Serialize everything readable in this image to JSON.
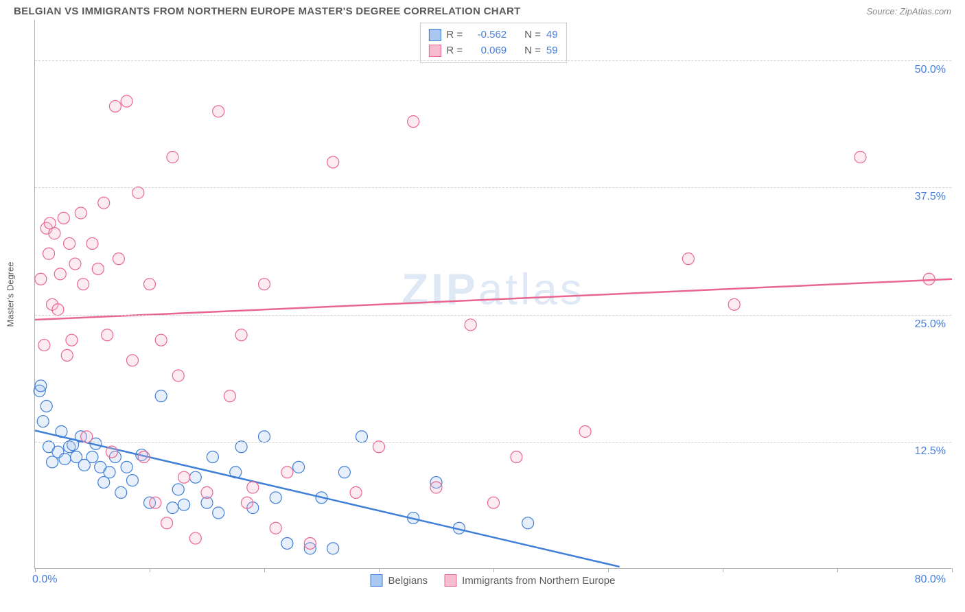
{
  "title": "BELGIAN VS IMMIGRANTS FROM NORTHERN EUROPE MASTER'S DEGREE CORRELATION CHART",
  "source": "Source: ZipAtlas.com",
  "watermark": {
    "left": "ZIP",
    "right": "atlas"
  },
  "chart": {
    "type": "scatter",
    "ylabel": "Master's Degree",
    "background_color": "#ffffff",
    "grid_color": "#d0d0d0",
    "axis_color": "#b0b0b0",
    "tick_label_color": "#4a7fd8",
    "label_color": "#5a5a5a",
    "label_fontsize": 13,
    "tick_fontsize": 16,
    "x_range": [
      0,
      80
    ],
    "y_range": [
      0,
      54
    ],
    "y_gridlines": [
      12.5,
      25.0,
      37.5,
      50.0
    ],
    "y_tick_labels": [
      "12.5%",
      "25.0%",
      "37.5%",
      "50.0%"
    ],
    "x_ticks": [
      0,
      10,
      20,
      30,
      40,
      50,
      60,
      70,
      80
    ],
    "x_label_min": "0.0%",
    "x_label_max": "80.0%",
    "marker_radius": 8.5,
    "marker_fill_opacity": 0.28,
    "series": [
      {
        "name": "Belgians",
        "color": "#3f7fd6",
        "fill": "#a9c7ef",
        "r_value": "-0.562",
        "n_value": "49",
        "trend": {
          "x1": 0,
          "y1": 13.6,
          "x2": 51,
          "y2": 0.2,
          "width": 2.5
        },
        "points": [
          [
            0.4,
            17.5
          ],
          [
            0.5,
            18.0
          ],
          [
            0.7,
            14.5
          ],
          [
            1.0,
            16.0
          ],
          [
            1.2,
            12.0
          ],
          [
            1.5,
            10.5
          ],
          [
            2.0,
            11.5
          ],
          [
            2.3,
            13.5
          ],
          [
            2.6,
            10.8
          ],
          [
            3.0,
            12.0
          ],
          [
            3.3,
            12.2
          ],
          [
            3.6,
            11.0
          ],
          [
            4.0,
            13.0
          ],
          [
            4.3,
            10.2
          ],
          [
            5.0,
            11.0
          ],
          [
            5.3,
            12.3
          ],
          [
            5.7,
            10.0
          ],
          [
            6.0,
            8.5
          ],
          [
            6.5,
            9.5
          ],
          [
            7.0,
            11.0
          ],
          [
            7.5,
            7.5
          ],
          [
            8.0,
            10.0
          ],
          [
            8.5,
            8.7
          ],
          [
            9.3,
            11.2
          ],
          [
            10.0,
            6.5
          ],
          [
            11.0,
            17.0
          ],
          [
            12.0,
            6.0
          ],
          [
            12.5,
            7.8
          ],
          [
            13.0,
            6.3
          ],
          [
            14.0,
            9.0
          ],
          [
            15.0,
            6.5
          ],
          [
            15.5,
            11.0
          ],
          [
            16.0,
            5.5
          ],
          [
            17.5,
            9.5
          ],
          [
            18.0,
            12.0
          ],
          [
            19.0,
            6.0
          ],
          [
            20.0,
            13.0
          ],
          [
            21.0,
            7.0
          ],
          [
            22.0,
            2.5
          ],
          [
            23.0,
            10.0
          ],
          [
            24.0,
            2.0
          ],
          [
            25.0,
            7.0
          ],
          [
            26.0,
            2.0
          ],
          [
            27.0,
            9.5
          ],
          [
            28.5,
            13.0
          ],
          [
            33.0,
            5.0
          ],
          [
            35.0,
            8.5
          ],
          [
            37.0,
            4.0
          ],
          [
            43.0,
            4.5
          ]
        ]
      },
      {
        "name": "Immigrants from Northern Europe",
        "color": "#e96690",
        "fill": "#f6bbcf",
        "r_value": "0.069",
        "n_value": "59",
        "trend": {
          "x1": 0,
          "y1": 24.5,
          "x2": 80,
          "y2": 28.5,
          "width": 2.5
        },
        "points": [
          [
            0.5,
            28.5
          ],
          [
            0.8,
            22.0
          ],
          [
            1.0,
            33.5
          ],
          [
            1.2,
            31.0
          ],
          [
            1.3,
            34.0
          ],
          [
            1.5,
            26.0
          ],
          [
            1.7,
            33.0
          ],
          [
            2.0,
            25.5
          ],
          [
            2.2,
            29.0
          ],
          [
            2.5,
            34.5
          ],
          [
            2.8,
            21.0
          ],
          [
            3.0,
            32.0
          ],
          [
            3.2,
            22.5
          ],
          [
            3.5,
            30.0
          ],
          [
            4.0,
            35.0
          ],
          [
            4.2,
            28.0
          ],
          [
            4.5,
            13.0
          ],
          [
            5.0,
            32.0
          ],
          [
            5.5,
            29.5
          ],
          [
            6.0,
            36.0
          ],
          [
            6.3,
            23.0
          ],
          [
            6.7,
            11.5
          ],
          [
            7.0,
            45.5
          ],
          [
            7.3,
            30.5
          ],
          [
            8.0,
            46.0
          ],
          [
            8.5,
            20.5
          ],
          [
            9.0,
            37.0
          ],
          [
            9.5,
            11.0
          ],
          [
            10.0,
            28.0
          ],
          [
            10.5,
            6.5
          ],
          [
            11.0,
            22.5
          ],
          [
            11.5,
            4.5
          ],
          [
            12.0,
            40.5
          ],
          [
            12.5,
            19.0
          ],
          [
            13.0,
            9.0
          ],
          [
            14.0,
            3.0
          ],
          [
            15.0,
            7.5
          ],
          [
            16.0,
            45.0
          ],
          [
            17.0,
            17.0
          ],
          [
            18.0,
            23.0
          ],
          [
            18.5,
            6.5
          ],
          [
            19.0,
            8.0
          ],
          [
            20.0,
            28.0
          ],
          [
            21.0,
            4.0
          ],
          [
            22.0,
            9.5
          ],
          [
            24.0,
            2.5
          ],
          [
            26.0,
            40.0
          ],
          [
            30.0,
            12.0
          ],
          [
            28.0,
            7.5
          ],
          [
            33.0,
            44.0
          ],
          [
            35.0,
            8.0
          ],
          [
            38.0,
            24.0
          ],
          [
            40.0,
            6.5
          ],
          [
            42.0,
            11.0
          ],
          [
            48.0,
            13.5
          ],
          [
            57.0,
            30.5
          ],
          [
            72.0,
            40.5
          ],
          [
            61.0,
            26.0
          ],
          [
            78.0,
            28.5
          ]
        ]
      }
    ],
    "legend_bottom": [
      {
        "label": "Belgians",
        "color": "#3f7fd6",
        "fill": "#a9c7ef"
      },
      {
        "label": "Immigrants from Northern Europe",
        "color": "#e96690",
        "fill": "#f6bbcf"
      }
    ]
  }
}
